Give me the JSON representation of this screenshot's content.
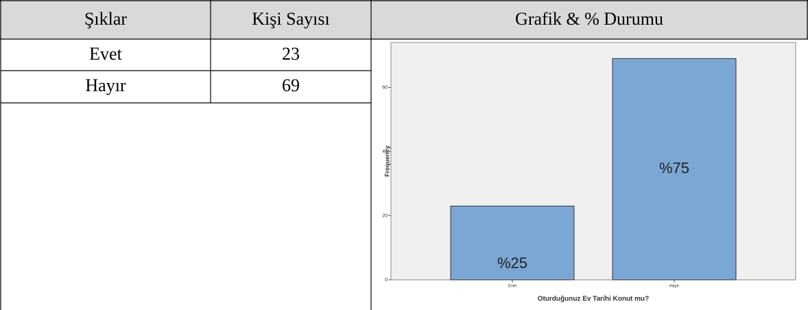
{
  "table": {
    "headers": [
      "Şıklar",
      "Kişi Sayısı",
      "Grafik & % Durumu"
    ],
    "rows": [
      [
        "Evet",
        23
      ],
      [
        "Hayır",
        69
      ]
    ]
  },
  "chart_data": {
    "type": "bar",
    "xlabel": "Oturduğunuz Ev Tarihi Konut mu?",
    "ylabel": "Frequency",
    "categories": [
      "Evet",
      "Hayır"
    ],
    "values": [
      23,
      69
    ],
    "color": "#7ba7d4",
    "annotations": [
      "%25",
      "%75"
    ],
    "ylim": [
      0,
      74
    ],
    "yticks": [
      0,
      20,
      40,
      60
    ]
  }
}
